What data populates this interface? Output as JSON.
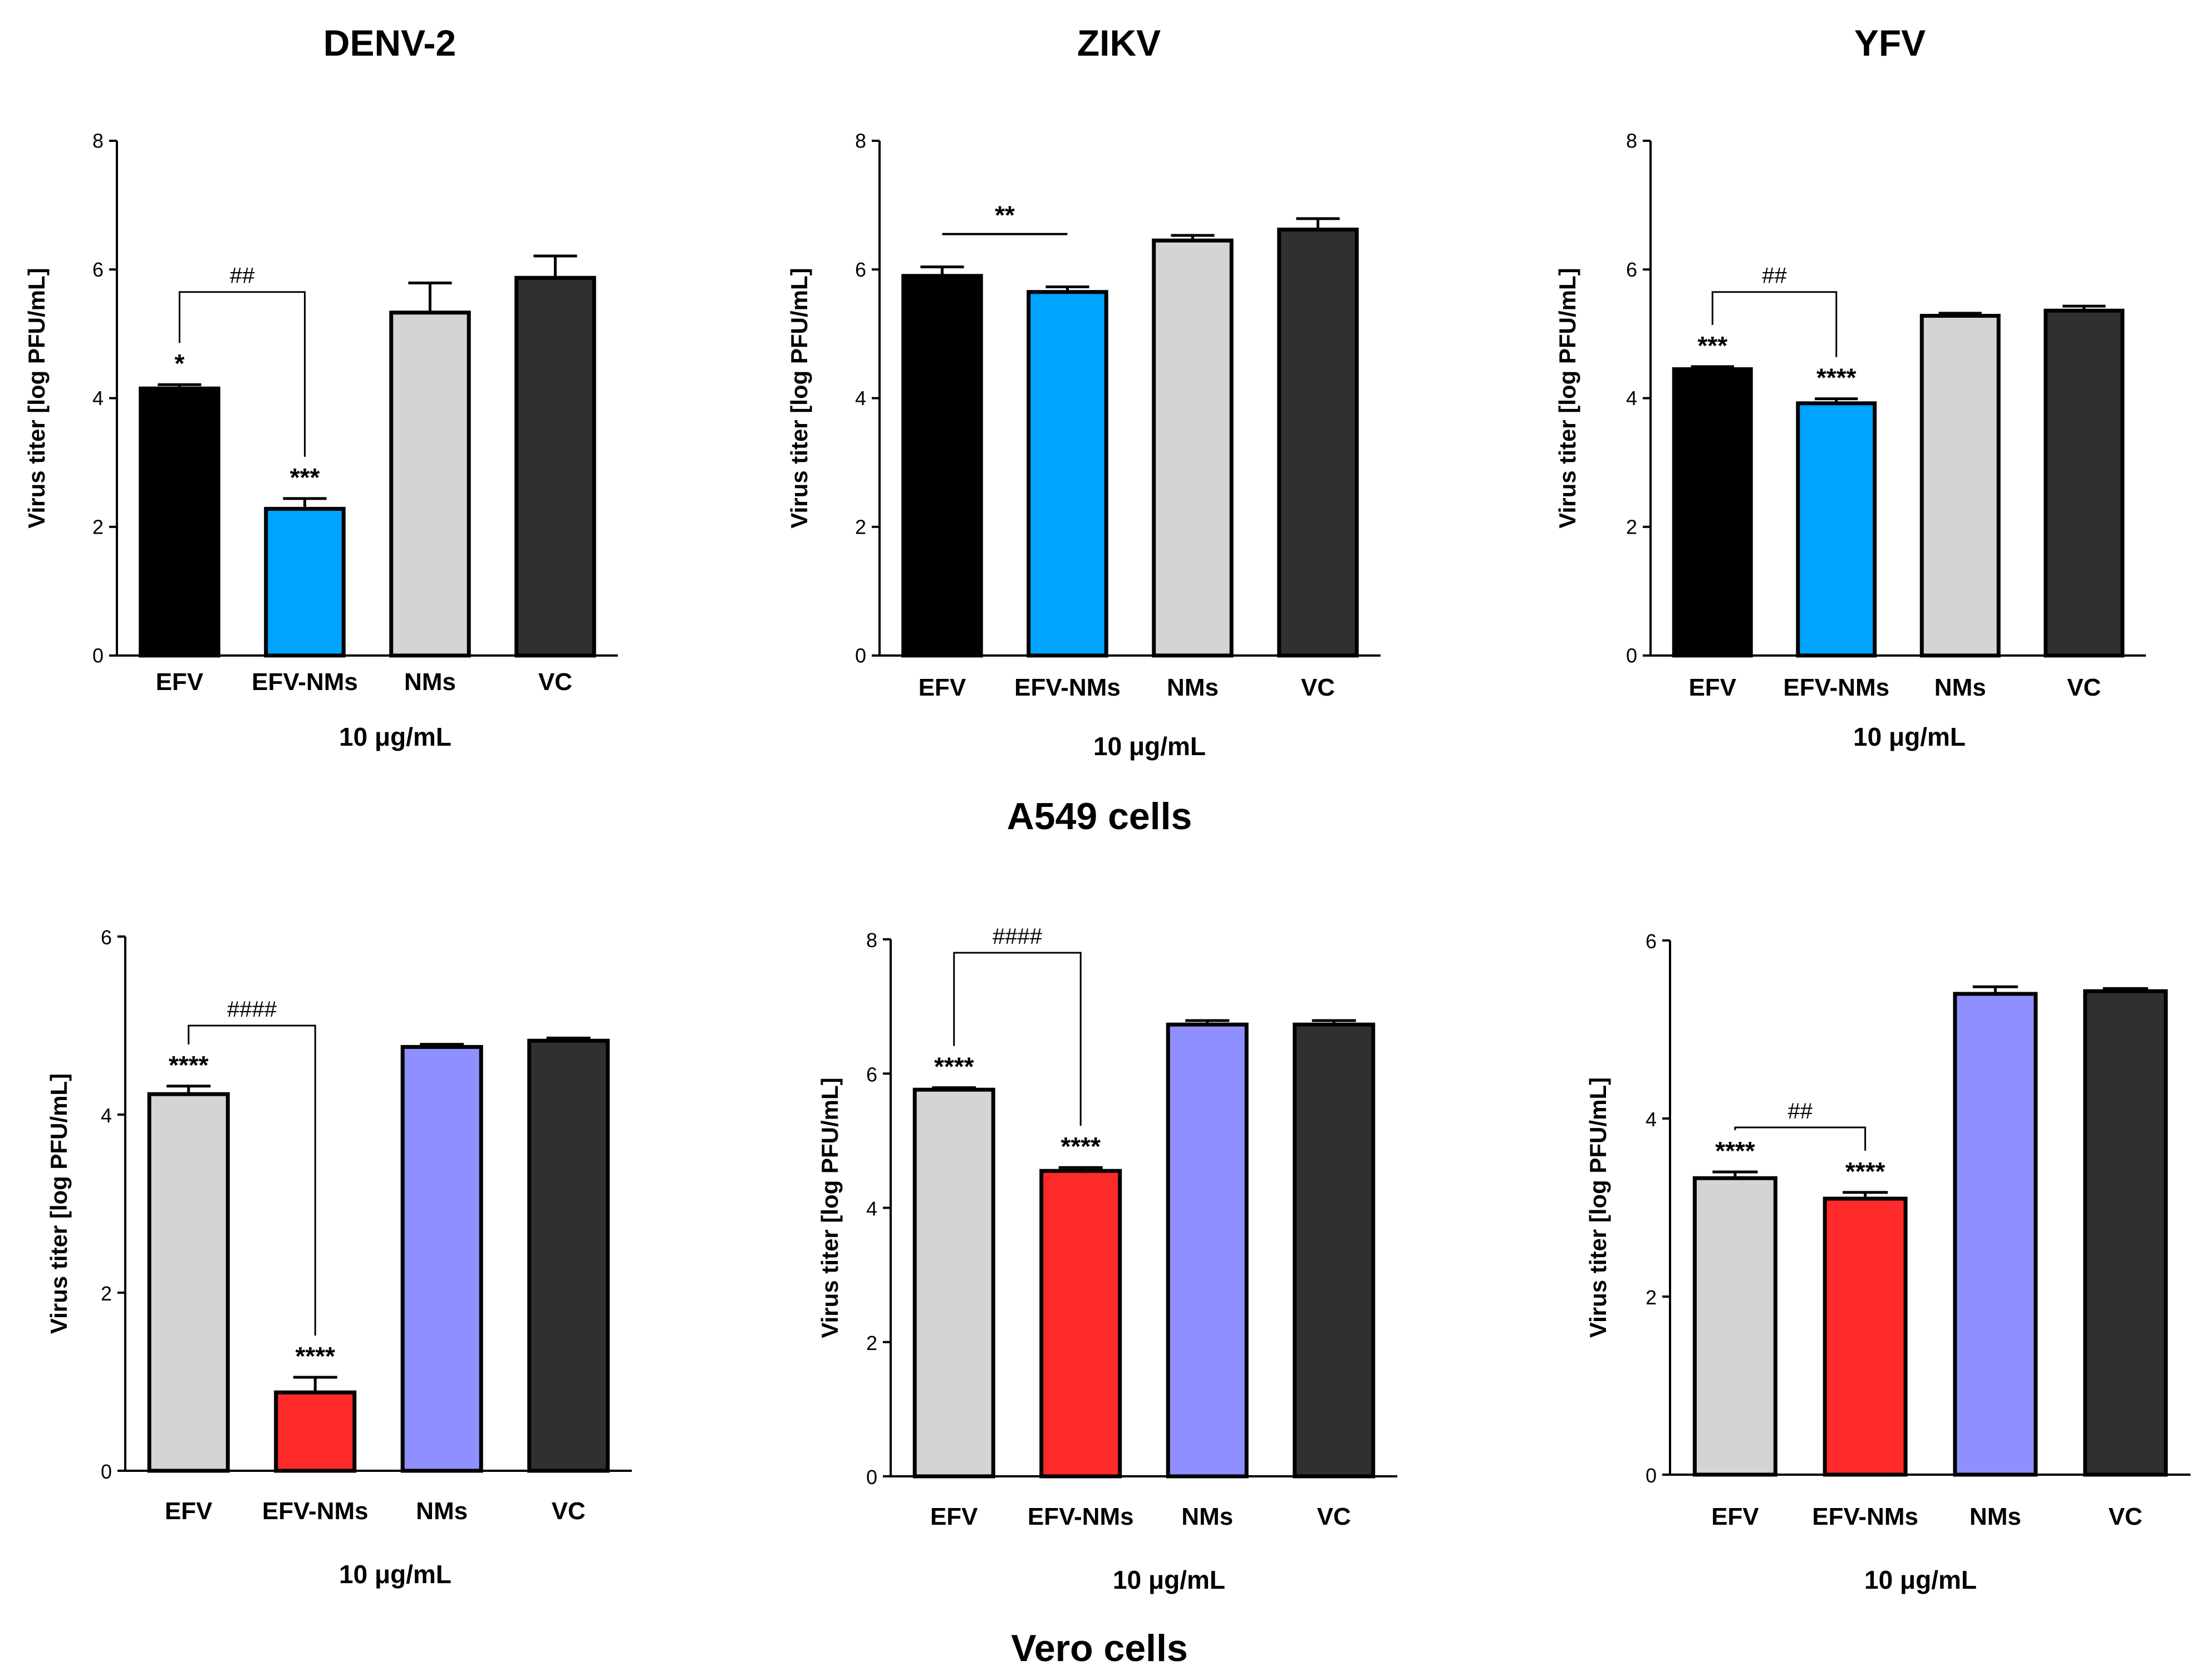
{
  "figure": {
    "row_labels": [
      "A549 cells",
      "Vero cells"
    ]
  },
  "chart_data": [
    {
      "type": "bar",
      "title": "DENV-2",
      "cells": "A549 cells",
      "categories": [
        "EFV",
        "EFV-NMs",
        "NMs",
        "VC"
      ],
      "values": [
        4.15,
        2.28,
        5.33,
        5.87
      ],
      "errors": [
        0.06,
        0.16,
        0.46,
        0.34
      ],
      "colors": [
        "#000000",
        "#00A3FF",
        "#D4D4D4",
        "#303030"
      ],
      "significance": [
        "*",
        "***",
        "",
        ""
      ],
      "comparison": {
        "label": "##",
        "from": 0,
        "to": 1,
        "at": 5.65
      },
      "xlabel": "10 μg/mL",
      "ylabel": "Virus titer [log PFU/mL]",
      "ylim": [
        0,
        8
      ],
      "yticks": [
        0,
        2,
        4,
        6,
        8
      ]
    },
    {
      "type": "bar",
      "title": "ZIKV",
      "cells": "A549 cells",
      "categories": [
        "EFV",
        "EFV-NMs",
        "NMs",
        "VC"
      ],
      "values": [
        5.9,
        5.65,
        6.45,
        6.62
      ],
      "errors": [
        0.14,
        0.08,
        0.08,
        0.17
      ],
      "colors": [
        "#000000",
        "#00A3FF",
        "#D4D4D4",
        "#303030"
      ],
      "significance": [
        "",
        "",
        "",
        ""
      ],
      "comparison": {
        "label": "**",
        "from": 0,
        "to": 1,
        "at": 6.55,
        "style": "line"
      },
      "xlabel": "10 μg/mL",
      "ylabel": "Virus titer [log PFU/mL]",
      "ylim": [
        0,
        8
      ],
      "yticks": [
        0,
        2,
        4,
        6,
        8
      ]
    },
    {
      "type": "bar",
      "title": "YFV",
      "cells": "A549 cells",
      "categories": [
        "EFV",
        "EFV-NMs",
        "NMs",
        "VC"
      ],
      "values": [
        4.45,
        3.92,
        5.28,
        5.36
      ],
      "errors": [
        0.04,
        0.07,
        0.04,
        0.07
      ],
      "colors": [
        "#000000",
        "#00A3FF",
        "#D4D4D4",
        "#303030"
      ],
      "significance": [
        "***",
        "****",
        "",
        ""
      ],
      "comparison": {
        "label": "##",
        "from": 0,
        "to": 1,
        "at": 5.65
      },
      "xlabel": "10 μg/mL",
      "ylabel": "Virus titer [log PFU/mL]",
      "ylim": [
        0,
        8
      ],
      "yticks": [
        0,
        2,
        4,
        6,
        8
      ]
    },
    {
      "type": "bar",
      "title": "",
      "cells": "Vero cells",
      "virus": "DENV-2",
      "categories": [
        "EFV",
        "EFV-NMs",
        "NMs",
        "VC"
      ],
      "values": [
        4.23,
        0.88,
        4.76,
        4.83
      ],
      "errors": [
        0.09,
        0.17,
        0.03,
        0.03
      ],
      "colors": [
        "#D4D4D4",
        "#FF2A2A",
        "#8F8FFF",
        "#303030"
      ],
      "significance": [
        "****",
        "****",
        "",
        ""
      ],
      "comparison": {
        "label": "####",
        "from": 0,
        "to": 1,
        "at": 5.0
      },
      "xlabel": "10 μg/mL",
      "ylabel": "Virus titer [log PFU/mL]",
      "ylim": [
        0,
        6
      ],
      "yticks": [
        0,
        2,
        4,
        6
      ]
    },
    {
      "type": "bar",
      "title": "",
      "cells": "Vero cells",
      "virus": "ZIKV",
      "categories": [
        "EFV",
        "EFV-NMs",
        "NMs",
        "VC"
      ],
      "values": [
        5.76,
        4.55,
        6.73,
        6.73
      ],
      "errors": [
        0.03,
        0.05,
        0.06,
        0.06
      ],
      "colors": [
        "#D4D4D4",
        "#FF2A2A",
        "#8F8FFF",
        "#303030"
      ],
      "significance": [
        "****",
        "****",
        "",
        ""
      ],
      "comparison": {
        "label": "####",
        "from": 0,
        "to": 1,
        "at": 7.8
      },
      "xlabel": "10 μg/mL",
      "ylabel": "Virus titer [log PFU/mL]",
      "ylim": [
        0,
        8
      ],
      "yticks": [
        0,
        2,
        4,
        6,
        8
      ]
    },
    {
      "type": "bar",
      "title": "",
      "cells": "Vero cells",
      "virus": "YFV",
      "categories": [
        "EFV",
        "EFV-NMs",
        "NMs",
        "VC"
      ],
      "values": [
        3.33,
        3.1,
        5.4,
        5.43
      ],
      "errors": [
        0.07,
        0.07,
        0.08,
        0.03
      ],
      "colors": [
        "#D4D4D4",
        "#FF2A2A",
        "#8F8FFF",
        "#303030"
      ],
      "significance": [
        "****",
        "****",
        "",
        ""
      ],
      "comparison": {
        "label": "##",
        "from": 0,
        "to": 1,
        "at": 3.9
      },
      "xlabel": "10 μg/mL",
      "ylabel": "Virus titer [log PFU/mL]",
      "ylim": [
        0,
        6
      ],
      "yticks": [
        0,
        2,
        4,
        6
      ]
    }
  ]
}
